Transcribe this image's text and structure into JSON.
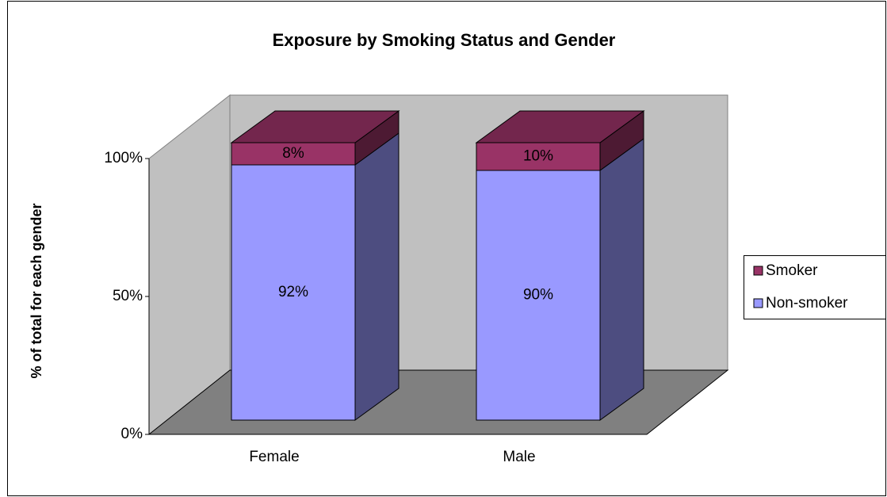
{
  "chart_data": {
    "type": "bar",
    "stacked": true,
    "three_d": true,
    "title": "Exposure by Smoking Status and Gender",
    "y_label": "% of total for each gender",
    "categories": [
      "Female",
      "Male"
    ],
    "series": [
      {
        "name": "Non-smoker",
        "color": "#9999ff",
        "values": [
          92,
          90
        ],
        "value_labels": [
          "92%",
          "90%"
        ]
      },
      {
        "name": "Smoker",
        "color": "#993366",
        "values": [
          8,
          10
        ],
        "value_labels": [
          "8%",
          "10%"
        ]
      }
    ],
    "ylim": [
      0,
      100
    ],
    "yticks": [
      {
        "value": 0,
        "label": "0%"
      },
      {
        "value": 50,
        "label": "50%"
      },
      {
        "value": 100,
        "label": "100%"
      }
    ],
    "grid": false,
    "legend": "right"
  }
}
